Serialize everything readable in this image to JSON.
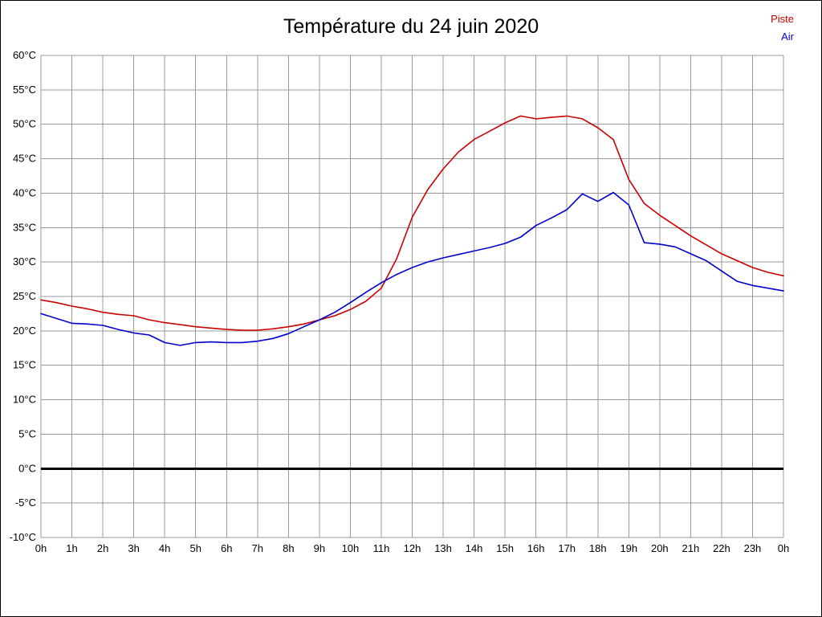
{
  "page": {
    "title": "Température du 24 juin 2020"
  },
  "legend": {
    "items": [
      {
        "label": "Piste",
        "color": "#cc0000"
      },
      {
        "label": "Air",
        "color": "#0000cc"
      }
    ]
  },
  "chart_data": {
    "type": "line",
    "title": "Température du 24 juin 2020",
    "xlabel": "",
    "ylabel": "",
    "xlim": [
      0,
      24
    ],
    "ylim": [
      -10,
      60
    ],
    "grid": true,
    "grid_color": "#999999",
    "axis_text_color": "#000000",
    "zero_line": {
      "value": 0,
      "color": "#000000",
      "width": 3
    },
    "x_tick_labels": [
      "0h",
      "1h",
      "2h",
      "3h",
      "4h",
      "5h",
      "6h",
      "7h",
      "8h",
      "9h",
      "10h",
      "11h",
      "12h",
      "13h",
      "14h",
      "15h",
      "16h",
      "17h",
      "18h",
      "19h",
      "20h",
      "21h",
      "22h",
      "23h",
      "0h"
    ],
    "y_ticks": [
      60,
      55,
      50,
      45,
      40,
      35,
      30,
      25,
      20,
      15,
      10,
      5,
      0,
      -5,
      -10
    ],
    "y_tick_suffix": "°C",
    "legend_position": "top-right",
    "series": [
      {
        "name": "Piste",
        "color": "#cc0000",
        "width": 1.6,
        "points": [
          [
            0,
            24.5
          ],
          [
            0.5,
            24.1
          ],
          [
            1,
            23.6
          ],
          [
            1.5,
            23.2
          ],
          [
            2,
            22.7
          ],
          [
            2.5,
            22.4
          ],
          [
            3,
            22.2
          ],
          [
            3.5,
            21.6
          ],
          [
            4,
            21.2
          ],
          [
            4.5,
            20.9
          ],
          [
            5,
            20.6
          ],
          [
            5.5,
            20.4
          ],
          [
            6,
            20.2
          ],
          [
            6.5,
            20.1
          ],
          [
            7,
            20.1
          ],
          [
            7.5,
            20.3
          ],
          [
            8,
            20.6
          ],
          [
            8.5,
            21.0
          ],
          [
            9,
            21.6
          ],
          [
            9.5,
            22.2
          ],
          [
            10,
            23.1
          ],
          [
            10.5,
            24.3
          ],
          [
            11,
            26.2
          ],
          [
            11.5,
            30.5
          ],
          [
            12,
            36.5
          ],
          [
            12.5,
            40.5
          ],
          [
            13,
            43.5
          ],
          [
            13.5,
            46.0
          ],
          [
            14,
            47.8
          ],
          [
            14.5,
            49.0
          ],
          [
            15,
            50.2
          ],
          [
            15.5,
            51.2
          ],
          [
            16,
            50.8
          ],
          [
            16.5,
            51.0
          ],
          [
            17,
            51.2
          ],
          [
            17.5,
            50.8
          ],
          [
            18,
            49.5
          ],
          [
            18.5,
            47.8
          ],
          [
            19,
            42.0
          ],
          [
            19.5,
            38.5
          ],
          [
            20,
            36.8
          ],
          [
            20.5,
            35.3
          ],
          [
            21,
            33.8
          ],
          [
            21.5,
            32.5
          ],
          [
            22,
            31.2
          ],
          [
            22.5,
            30.2
          ],
          [
            23,
            29.2
          ],
          [
            23.5,
            28.5
          ],
          [
            24,
            28.0
          ]
        ]
      },
      {
        "name": "Air",
        "color": "#0000cc",
        "width": 1.6,
        "points": [
          [
            0,
            22.5
          ],
          [
            0.5,
            21.8
          ],
          [
            1,
            21.1
          ],
          [
            1.5,
            21.0
          ],
          [
            2,
            20.8
          ],
          [
            2.5,
            20.2
          ],
          [
            3,
            19.7
          ],
          [
            3.5,
            19.4
          ],
          [
            4,
            18.3
          ],
          [
            4.5,
            17.9
          ],
          [
            5,
            18.3
          ],
          [
            5.5,
            18.4
          ],
          [
            6,
            18.3
          ],
          [
            6.5,
            18.3
          ],
          [
            7,
            18.5
          ],
          [
            7.5,
            18.9
          ],
          [
            8,
            19.6
          ],
          [
            8.5,
            20.6
          ],
          [
            9,
            21.6
          ],
          [
            9.5,
            22.7
          ],
          [
            10,
            24.1
          ],
          [
            10.5,
            25.6
          ],
          [
            11,
            27.0
          ],
          [
            11.5,
            28.2
          ],
          [
            12,
            29.2
          ],
          [
            12.5,
            30.0
          ],
          [
            13,
            30.6
          ],
          [
            13.5,
            31.1
          ],
          [
            14,
            31.6
          ],
          [
            14.5,
            32.1
          ],
          [
            15,
            32.7
          ],
          [
            15.5,
            33.6
          ],
          [
            16,
            35.3
          ],
          [
            16.5,
            36.4
          ],
          [
            17,
            37.6
          ],
          [
            17.5,
            39.9
          ],
          [
            18,
            38.8
          ],
          [
            18.5,
            40.1
          ],
          [
            19,
            38.3
          ],
          [
            19.5,
            32.8
          ],
          [
            20,
            32.6
          ],
          [
            20.5,
            32.2
          ],
          [
            21,
            31.2
          ],
          [
            21.5,
            30.2
          ],
          [
            22,
            28.7
          ],
          [
            22.5,
            27.2
          ],
          [
            23,
            26.6
          ],
          [
            23.5,
            26.2
          ],
          [
            24,
            25.8
          ]
        ]
      }
    ]
  }
}
